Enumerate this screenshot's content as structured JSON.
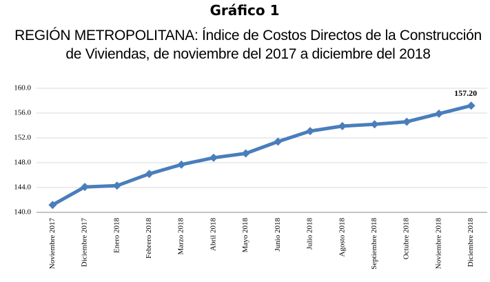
{
  "chart_data": {
    "type": "line",
    "title": "Gráfico 1",
    "subtitle": [
      "REGIÓN METROPOLITANA: Índice de Costos Directos de la Construcción",
      "de Viviendas,  de noviembre del 2017 a diciembre del 2018"
    ],
    "categories": [
      "Noviembre 2017",
      "Diciembre 2017",
      "Enero 2018",
      "Febrero 2018",
      "Marzo 2018",
      "Abril 2018",
      "Mayo 2018",
      "Junio 2018",
      "Julio 2018",
      "Agosto 2018",
      "Septiembre 2018",
      "Octubre 2018",
      "Noviembre 2018",
      "Diciembre 2018"
    ],
    "series": [
      {
        "name": "Índice",
        "color": "#4a7ebb",
        "values": [
          141.2,
          144.1,
          144.3,
          146.2,
          147.7,
          148.8,
          149.5,
          151.4,
          153.1,
          153.9,
          154.2,
          154.6,
          155.9,
          157.2
        ],
        "value_labels": [
          null,
          null,
          null,
          null,
          null,
          null,
          null,
          null,
          null,
          null,
          null,
          null,
          null,
          "157.20"
        ]
      }
    ],
    "ylim": [
      140,
      160
    ],
    "yticks": [
      {
        "value": 140,
        "label": "140.0"
      },
      {
        "value": 144,
        "label": "144.0"
      },
      {
        "value": 148,
        "label": "148.0"
      },
      {
        "value": 152,
        "label": "152.0"
      },
      {
        "value": 156,
        "label": "156.0"
      },
      {
        "value": 160,
        "label": "160.0"
      }
    ],
    "grid": true
  }
}
